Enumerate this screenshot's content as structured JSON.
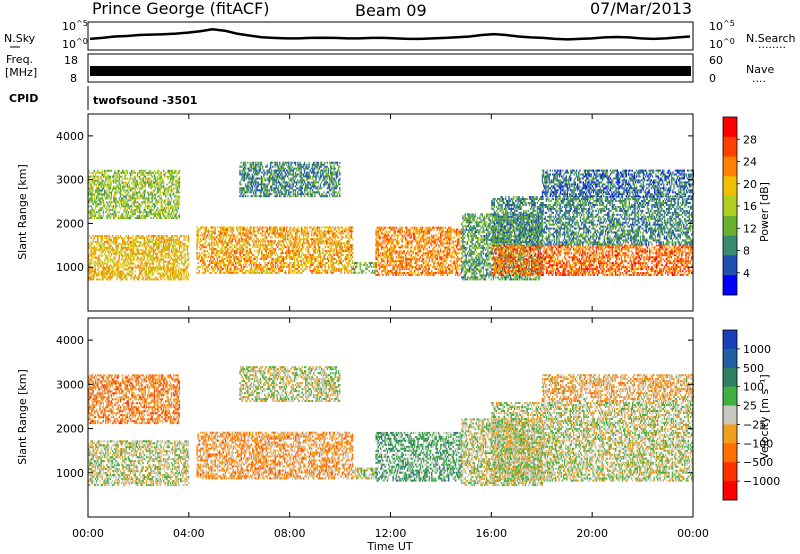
{
  "header": {
    "title": "Prince George (fitACF)",
    "beam": "Beam 09",
    "date": "07/Mar/2013"
  },
  "noise_panel": {
    "left_label": "N.Sky",
    "right_label": "N.Search",
    "left_ticks": [
      {
        "base": "10",
        "exp": "^5"
      },
      {
        "base": "10",
        "exp": "^0"
      }
    ],
    "right_ticks": [
      {
        "base": "10",
        "exp": "^5"
      },
      {
        "base": "10",
        "exp": "^0"
      }
    ],
    "dots": "........",
    "trace_color": "#000000",
    "trace_y": [
      0.62,
      0.58,
      0.52,
      0.5,
      0.46,
      0.44,
      0.43,
      0.4,
      0.36,
      0.3,
      0.22,
      0.28,
      0.4,
      0.48,
      0.55,
      0.58,
      0.6,
      0.6,
      0.58,
      0.57,
      0.58,
      0.6,
      0.6,
      0.58,
      0.58,
      0.6,
      0.62,
      0.62,
      0.6,
      0.58,
      0.55,
      0.52,
      0.46,
      0.42,
      0.46,
      0.52,
      0.56,
      0.58,
      0.62,
      0.64,
      0.62,
      0.6,
      0.56,
      0.54,
      0.56,
      0.6,
      0.62,
      0.6,
      0.56,
      0.52
    ]
  },
  "freq_panel": {
    "left_label_1": "Freq.",
    "left_label_2": "[MHz]",
    "right_label": "Nave",
    "left_ticks": [
      "18",
      "8"
    ],
    "right_ticks": [
      "60",
      "0"
    ],
    "dots": "...."
  },
  "cpid": {
    "label": "CPID",
    "text": "twofsound  -3501"
  },
  "power_panel": {
    "ylabel": "Slant Range [km]",
    "yticks": [
      "4000",
      "3000",
      "2000",
      "1000"
    ],
    "colorbar_label": "Power [dB]",
    "colorbar_ticks": [
      "28",
      "24",
      "20",
      "16",
      "12",
      "8",
      "4"
    ],
    "colors": [
      "#0000ff",
      "#2050b0",
      "#3a8a70",
      "#69b030",
      "#b0d020",
      "#f0c000",
      "#ff8000",
      "#ff4000",
      "#ff0000"
    ]
  },
  "velocity_panel": {
    "ylabel": "Slant Range [km]",
    "yticks": [
      "4000",
      "3000",
      "2000",
      "1000"
    ],
    "colorbar_label": "Velocity  [m s⁻¹]",
    "colorbar_ticks": [
      "1000",
      "500",
      "100",
      "25",
      "−25",
      "−100",
      "−500",
      "−1000"
    ],
    "colors": [
      "#1a3fb8",
      "#2060a0",
      "#2e8060",
      "#40b040",
      "#c8c8c0",
      "#f0a020",
      "#ff7000",
      "#ff3000",
      "#ff0000"
    ],
    "ground_color": "#c8c8c0"
  },
  "xaxis": {
    "label": "Time UT",
    "ticks": [
      "00:00",
      "04:00",
      "08:00",
      "12:00",
      "16:00",
      "20:00",
      "00:00"
    ]
  },
  "chart_data": {
    "type": "heatmap",
    "title": "Prince George (fitACF)",
    "subtitle": "Beam 09",
    "date": "07/Mar/2013",
    "x_axis": {
      "label": "Time UT",
      "range": [
        "00:00",
        "24:00"
      ],
      "ticks": [
        "00:00",
        "04:00",
        "08:00",
        "12:00",
        "16:00",
        "20:00",
        "00:00"
      ]
    },
    "y_axis": {
      "label": "Slant Range [km]",
      "range": [
        0,
        4500
      ],
      "ticks": [
        1000,
        2000,
        3000,
        4000
      ]
    },
    "panels": [
      {
        "name": "Power",
        "colorbar": {
          "label": "Power [dB]",
          "range": [
            0,
            32
          ],
          "ticks": [
            4,
            8,
            12,
            16,
            20,
            24,
            28
          ]
        },
        "regions": [
          {
            "t_start": 0.0,
            "t_end": 4.0,
            "r_start": 700,
            "r_end": 1700,
            "value": 20
          },
          {
            "t_start": 0.0,
            "t_end": 3.6,
            "r_start": 2100,
            "r_end": 3200,
            "value": 14
          },
          {
            "t_start": 4.3,
            "t_end": 10.5,
            "r_start": 850,
            "r_end": 1900,
            "value": 22
          },
          {
            "t_start": 6.0,
            "t_end": 10.0,
            "r_start": 2600,
            "r_end": 3400,
            "value": 8
          },
          {
            "t_start": 10.5,
            "t_end": 11.4,
            "r_start": 850,
            "r_end": 1100,
            "value": 12
          },
          {
            "t_start": 11.4,
            "t_end": 14.8,
            "r_start": 800,
            "r_end": 1900,
            "value": 24
          },
          {
            "t_start": 14.8,
            "t_end": 18.0,
            "r_start": 700,
            "r_end": 2200,
            "value": 10
          },
          {
            "t_start": 16.0,
            "t_end": 24.0,
            "r_start": 800,
            "r_end": 1500,
            "value": 26
          },
          {
            "t_start": 16.0,
            "t_end": 24.0,
            "r_start": 1500,
            "r_end": 2600,
            "value": 8
          },
          {
            "t_start": 18.0,
            "t_end": 24.0,
            "r_start": 2600,
            "r_end": 3200,
            "value": 6
          }
        ]
      },
      {
        "name": "Velocity",
        "colorbar": {
          "label": "Velocity [m s-1]",
          "range": [
            -1000,
            1000
          ],
          "ticks": [
            1000,
            500,
            100,
            25,
            -25,
            -100,
            -500,
            -1000
          ]
        },
        "regions": [
          {
            "t_start": 0.0,
            "t_end": 4.0,
            "r_start": 700,
            "r_end": 1700,
            "value": 0
          },
          {
            "t_start": 0.0,
            "t_end": 3.6,
            "r_start": 2100,
            "r_end": 3200,
            "value": -400
          },
          {
            "t_start": 4.3,
            "t_end": 10.5,
            "r_start": 850,
            "r_end": 1900,
            "value": -300
          },
          {
            "t_start": 6.0,
            "t_end": 10.0,
            "r_start": 2600,
            "r_end": 3400,
            "value": 0
          },
          {
            "t_start": 10.5,
            "t_end": 11.4,
            "r_start": 850,
            "r_end": 1100,
            "value": 0
          },
          {
            "t_start": 11.4,
            "t_end": 14.8,
            "r_start": 800,
            "r_end": 1900,
            "value": 300
          },
          {
            "t_start": 14.8,
            "t_end": 18.0,
            "r_start": 700,
            "r_end": 2200,
            "value": 0
          },
          {
            "t_start": 16.0,
            "t_end": 24.0,
            "r_start": 800,
            "r_end": 2600,
            "value": 0
          },
          {
            "t_start": 18.0,
            "t_end": 24.0,
            "r_start": 2600,
            "r_end": 3200,
            "value": -200
          }
        ]
      }
    ],
    "grid": false
  }
}
